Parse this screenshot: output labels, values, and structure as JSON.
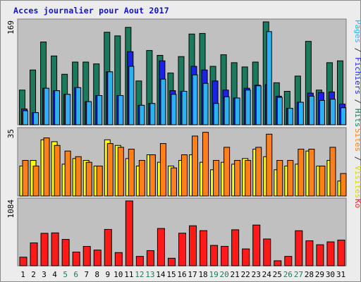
{
  "title": "Acces journalier pour Aout 2017",
  "chart_data": {
    "type": "bar",
    "title": "Acces journalier pour Aout 2017",
    "x": [
      1,
      2,
      3,
      4,
      5,
      6,
      7,
      8,
      9,
      10,
      11,
      12,
      13,
      14,
      15,
      16,
      17,
      18,
      19,
      20,
      21,
      22,
      23,
      24,
      25,
      26,
      27,
      28,
      29,
      30,
      31
    ],
    "weekend_days": [
      5,
      6,
      12,
      13,
      19,
      20,
      26,
      27
    ],
    "panels": [
      {
        "name": "pages-fichiers-hits",
        "ymax_label": "169",
        "ymax": 169,
        "series": [
          {
            "name": "Hits",
            "color": "#1b7a5e",
            "values": [
              57,
              90,
              136,
              113,
              83,
              103,
              103,
              100,
              152,
              146,
              160,
              72,
              122,
              114,
              85,
              112,
              149,
              150,
              96,
              115,
              102,
              95,
              103,
              169,
              69,
              55,
              80,
              137,
              57,
              102,
              105
            ]
          },
          {
            "name": "Fichiers",
            "color": "#1c22e8",
            "values": [
              26,
              20,
              60,
              56,
              50,
              61,
              38,
              48,
              87,
              48,
              120,
              32,
              35,
              105,
              56,
              55,
              96,
              90,
              72,
              57,
              44,
              60,
              65,
              66,
              47,
              27,
              37,
              52,
              53,
              54,
              34
            ]
          },
          {
            "name": "Pages",
            "color": "#2cb2f3",
            "values": [
              23,
              20,
              60,
              56,
              50,
              61,
              38,
              48,
              87,
              48,
              96,
              32,
              35,
              75,
              50,
              55,
              82,
              68,
              35,
              46,
              44,
              57,
              64,
              153,
              45,
              27,
              37,
              47,
              40,
              42,
              28
            ]
          }
        ],
        "right_labels": [
          {
            "text": "Pages",
            "color": "#2cb2f3"
          },
          {
            "text": " / ",
            "color": "#333333"
          },
          {
            "text": "Fichiers",
            "color": "#1c22e8"
          },
          {
            "text": " / ",
            "color": "#333333"
          },
          {
            "text": "Hits",
            "color": "#1b7a5e"
          }
        ]
      },
      {
        "name": "sites-visites",
        "ymax_label": "35",
        "ymax": 35,
        "series": [
          {
            "name": "Visites",
            "color": "#ffff10",
            "values": [
              16,
              19,
              30,
              29,
              17,
              20,
              19,
              16,
              30,
              27,
              20,
              16,
              22,
              18,
              16,
              19,
              22,
              18,
              14,
              18,
              17,
              20,
              25,
              21,
              14,
              16,
              17,
              24,
              16,
              19,
              8
            ]
          },
          {
            "name": "Sites",
            "color": "#ff8018",
            "values": [
              19,
              16,
              31,
              27,
              24,
              21,
              18,
              16,
              28,
              26,
              25,
              19,
              22,
              28,
              15,
              22,
              32,
              34,
              19,
              26,
              19,
              19,
              26,
              33,
              19,
              19,
              25,
              25,
              16,
              26,
              12
            ]
          }
        ],
        "right_labels": [
          {
            "text": "Sites",
            "color": "#ff8018"
          },
          {
            "text": " / ",
            "color": "#333333"
          },
          {
            "text": "Visites",
            "color": "#d8d800"
          }
        ]
      },
      {
        "name": "ko",
        "ymax_label": "1084",
        "ymax": 1084,
        "series": [
          {
            "name": "Ko",
            "color": "#ff1a1a",
            "values": [
              144,
              383,
              543,
              550,
              441,
              230,
              324,
              263,
              608,
              221,
              1084,
              157,
              254,
              624,
              126,
              545,
              669,
              587,
              341,
              325,
              602,
              282,
              681,
              448,
              84,
              157,
              586,
              418,
              352,
              400,
              430
            ]
          }
        ],
        "right_labels": [
          {
            "text": "Ko",
            "color": "#ff1a1a"
          }
        ]
      }
    ]
  },
  "colors": {
    "frame_bg": "#ececec",
    "plot_bg": "#c0c0c0",
    "weekend_tick": "#1b7a5e",
    "weekday_tick": "#000000"
  }
}
